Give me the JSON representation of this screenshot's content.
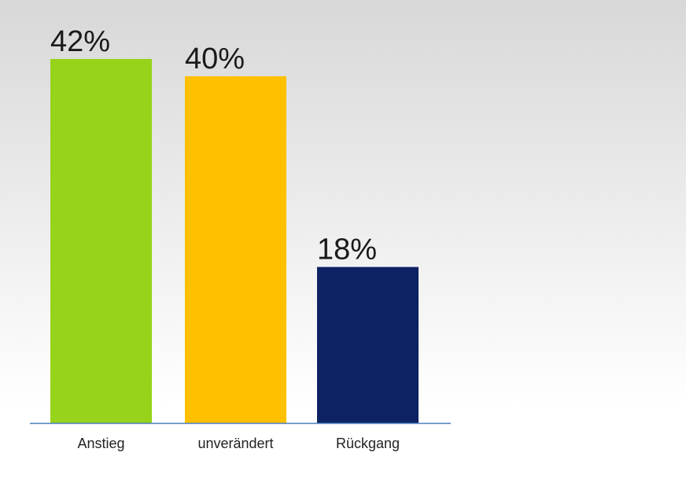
{
  "chart_data": {
    "type": "bar",
    "categories": [
      "Anstieg",
      "unverändert",
      "Rückgang"
    ],
    "values": [
      42,
      40,
      18
    ],
    "value_labels": [
      "42%",
      "40%",
      "18%"
    ],
    "colors": [
      "#97d31a",
      "#ffc000",
      "#0d2263"
    ],
    "axis_color": "#4a7fc1"
  }
}
